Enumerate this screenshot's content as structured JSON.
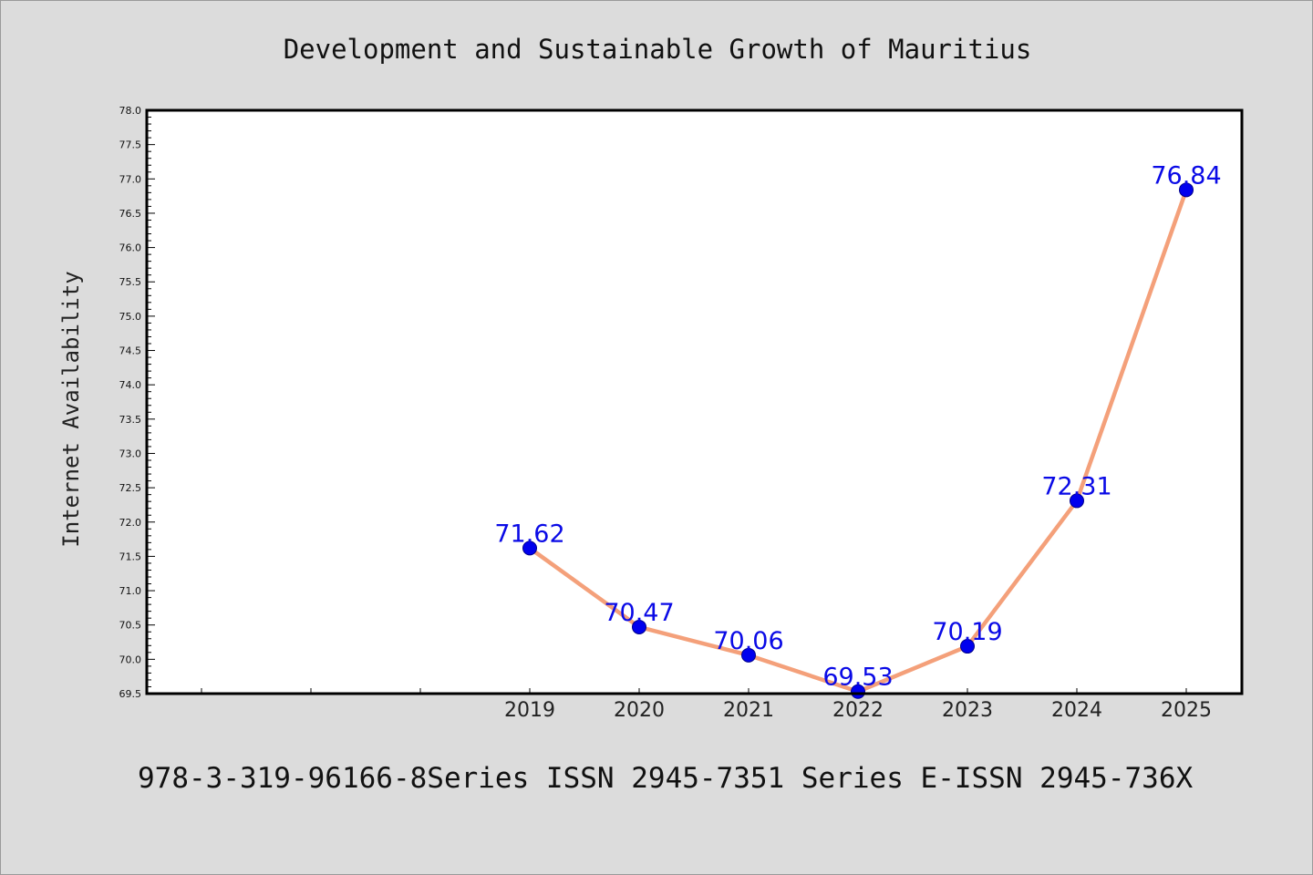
{
  "chart_data": {
    "type": "line",
    "title": "Development and Sustainable Growth of Mauritius",
    "xlabel": "",
    "ylabel": "Internet Availability",
    "x": [
      "2019",
      "2020",
      "2021",
      "2022",
      "2023",
      "2024",
      "2025"
    ],
    "series": [
      {
        "values": [
          71.62,
          70.47,
          70.06,
          69.53,
          70.19,
          72.31,
          76.84
        ]
      }
    ],
    "data_labels": [
      "71.62",
      "70.47",
      "70.06",
      "69.53",
      "70.19",
      "72.31",
      "76.84"
    ],
    "ylim": [
      69.5,
      78.0
    ],
    "yticks": [
      "69.5",
      "70.0",
      "70.5",
      "71.0",
      "71.5",
      "72.0",
      "72.5",
      "73.0",
      "73.5",
      "74.0",
      "74.5",
      "75.0",
      "75.5",
      "76.0",
      "76.5",
      "77.0",
      "77.5",
      "78.0"
    ],
    "line_color": "#f4a07a",
    "marker_color": "#0000ee",
    "grid": false
  },
  "footer": "978-3-319-96166-8Series ISSN 2945-7351 Series E-ISSN 2945-736X"
}
